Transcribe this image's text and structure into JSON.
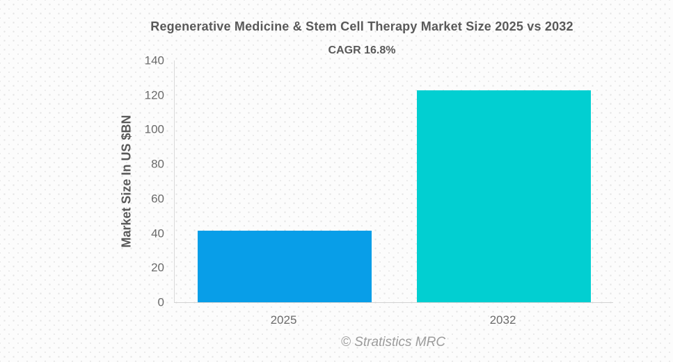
{
  "chart_data": {
    "type": "bar",
    "title": "Regenerative Medicine & Stem Cell Therapy Market Size 2025 vs 2032",
    "subtitle": "CAGR 16.8%",
    "categories": [
      "2025",
      "2032"
    ],
    "values": [
      41.4,
      122.9
    ],
    "bar_colors": [
      "#089ee8",
      "#02cfd1"
    ],
    "xlabel": "",
    "ylabel": "Market Size In US $BN",
    "ylim": [
      0,
      140
    ],
    "ytick_step": 20,
    "grid": false,
    "legend": "none"
  },
  "footer": {
    "text": "© Stratistics MRC"
  },
  "colors": {
    "title_text": "#595959",
    "axis_text": "#6b6b6b",
    "axis_line": "#d9d9d9",
    "watermark_text": "#9c9c9c",
    "bar_2025": "#089ee8",
    "bar_2032": "#02cfd1"
  }
}
